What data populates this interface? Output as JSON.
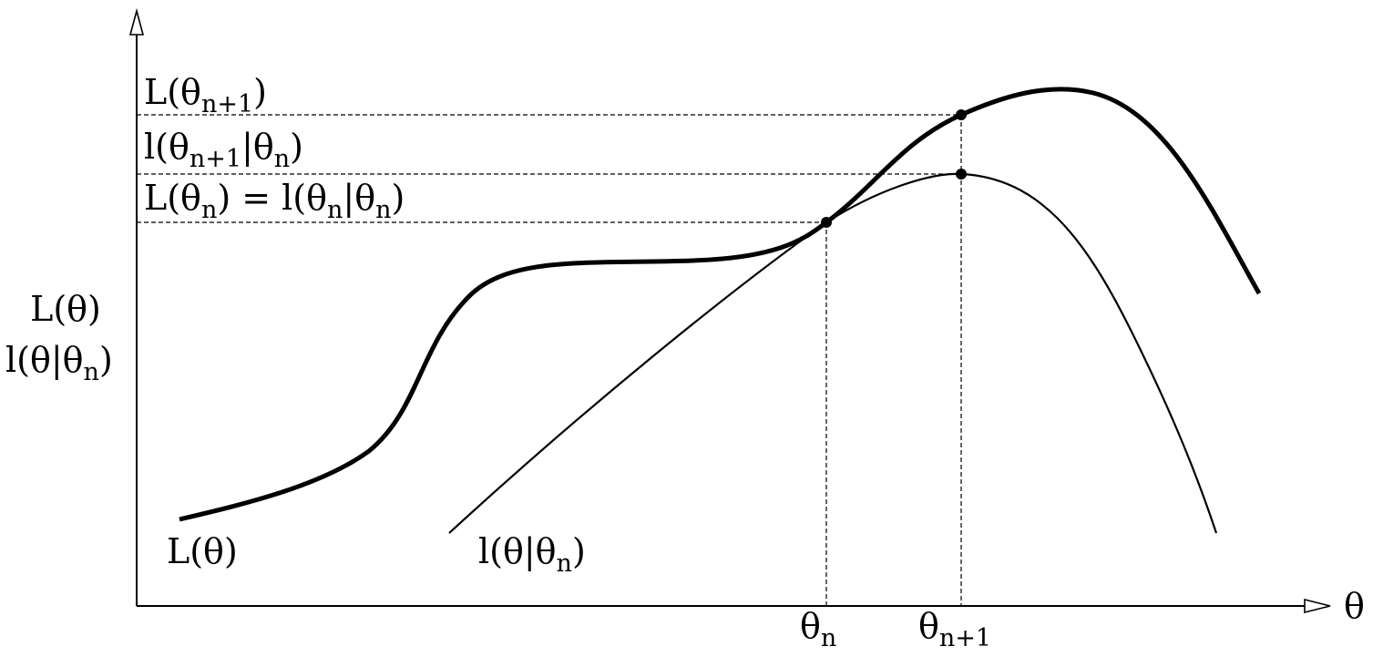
{
  "axes": {
    "x_label": "θ",
    "y_label_line1": "L(θ)",
    "y_label_line2": "l(θ|θn)"
  },
  "levels": {
    "top": {
      "main": "L(θ",
      "sub": "n+1",
      "close": ")"
    },
    "mid": {
      "pre": "l(θ",
      "sub1": "n+1",
      "mid": "|θ",
      "sub2": "n",
      "close": ")"
    },
    "low": {
      "pre": "L(θ",
      "sub1": "n",
      "mid": ") = l(θ",
      "sub2": "n",
      "mid2": "|θ",
      "sub3": "n",
      "close": ")"
    }
  },
  "ticks": {
    "theta_n": {
      "main": "θ",
      "sub": "n"
    },
    "theta_n1": {
      "main": "θ",
      "sub": "n+1"
    }
  },
  "curves": {
    "L_label": "L(θ)",
    "l_label": {
      "pre": "l(θ|θ",
      "sub": "n",
      "close": ")"
    }
  }
}
